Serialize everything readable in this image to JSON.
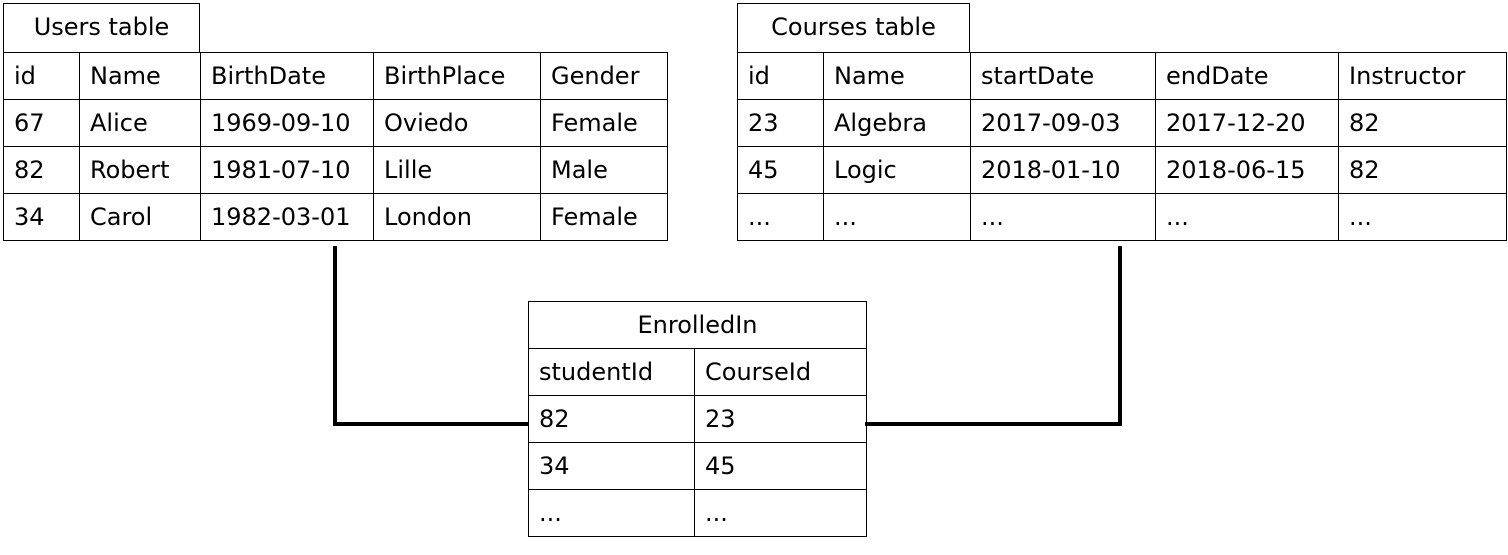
{
  "users": {
    "title": "Users table",
    "columns": [
      "id",
      "Name",
      "BirthDate",
      "BirthPlace",
      "Gender"
    ],
    "rows": [
      [
        "67",
        "Alice",
        "1969-09-10",
        "Oviedo",
        "Female"
      ],
      [
        "82",
        "Robert",
        "1981-07-10",
        "Lille",
        "Male"
      ],
      [
        "34",
        "Carol",
        "1982-03-01",
        "London",
        "Female"
      ]
    ]
  },
  "courses": {
    "title": "Courses table",
    "columns": [
      "id",
      "Name",
      "startDate",
      "endDate",
      "Instructor"
    ],
    "rows": [
      [
        "23",
        "Algebra",
        "2017-09-03",
        "2017-12-20",
        "82"
      ],
      [
        "45",
        "Logic",
        "2018-01-10",
        "2018-06-15",
        "82"
      ],
      [
        "...",
        "...",
        "...",
        "...",
        "..."
      ]
    ]
  },
  "enrolled": {
    "title": "EnrolledIn",
    "columns": [
      "studentId",
      "CourseId"
    ],
    "rows": [
      [
        "82",
        "23"
      ],
      [
        "34",
        "45"
      ],
      [
        "...",
        "..."
      ]
    ]
  }
}
